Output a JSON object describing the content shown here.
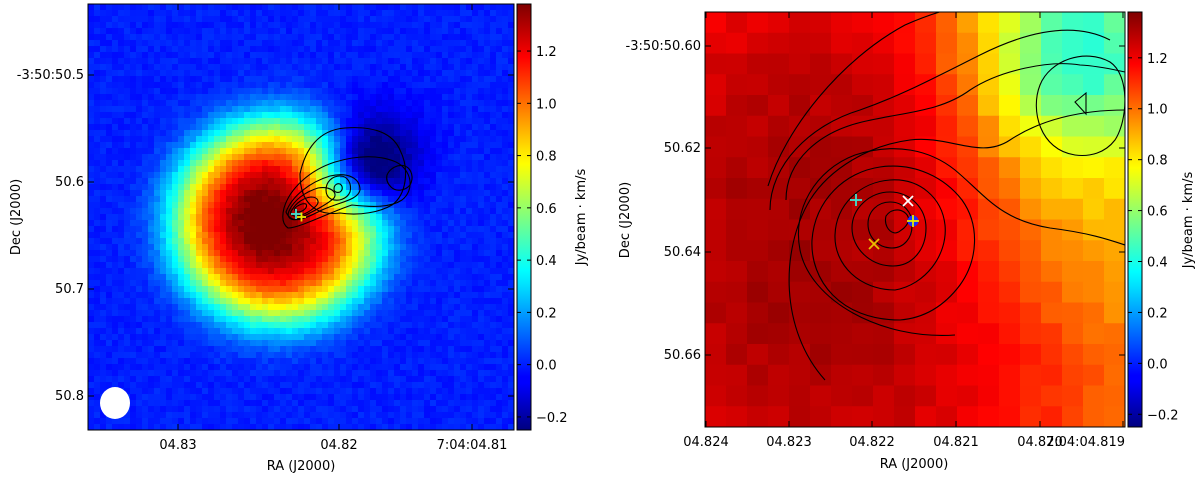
{
  "chart_data": [
    {
      "type": "heatmap",
      "panel": "left",
      "xlabel": "RA (J2000)",
      "ylabel": "Dec (J2000)",
      "x_ticks": [
        "04.83",
        "04.82",
        "7:04:04.81"
      ],
      "y_ticks": [
        "-3:50:50.5",
        "50.6",
        "50.7",
        "50.8"
      ],
      "colorbar": {
        "label": "Jy/beam · km/s",
        "range": [
          -0.25,
          1.38
        ],
        "ticks": [
          "−0.2",
          "0.0",
          "0.2",
          "0.4",
          "0.6",
          "0.8",
          "1.0",
          "1.2"
        ],
        "colormap": "jet"
      },
      "contours": "black",
      "markers": [
        {
          "symbol": "+",
          "color": "#40e0d0"
        },
        {
          "symbol": "+",
          "color": "#e8e800"
        }
      ],
      "beam": {
        "color": "#ffffff"
      }
    },
    {
      "type": "heatmap",
      "panel": "right",
      "xlabel": "RA (J2000)",
      "ylabel": "Dec (J2000)",
      "x_ticks": [
        "04.824",
        "04.823",
        "04.822",
        "04.821",
        "04.820",
        "7:04:04.819"
      ],
      "y_ticks": [
        "-3:50:50.60",
        "50.62",
        "50.64",
        "50.66"
      ],
      "colorbar": {
        "label": "Jy/beam · km/s",
        "range": [
          -0.25,
          1.38
        ],
        "ticks": [
          "−0.2",
          "0.0",
          "0.2",
          "0.4",
          "0.6",
          "0.8",
          "1.0",
          "1.2"
        ],
        "colormap": "jet"
      },
      "contours": "black",
      "markers": [
        {
          "symbol": "+",
          "color": "#40e0d0"
        },
        {
          "symbol": "x",
          "color": "#ffffff"
        },
        {
          "symbol": "x",
          "color": "#e8c000"
        },
        {
          "symbol": "o",
          "color": "#1a30ff"
        },
        {
          "symbol": "+",
          "color": "#e8e800"
        }
      ]
    }
  ]
}
